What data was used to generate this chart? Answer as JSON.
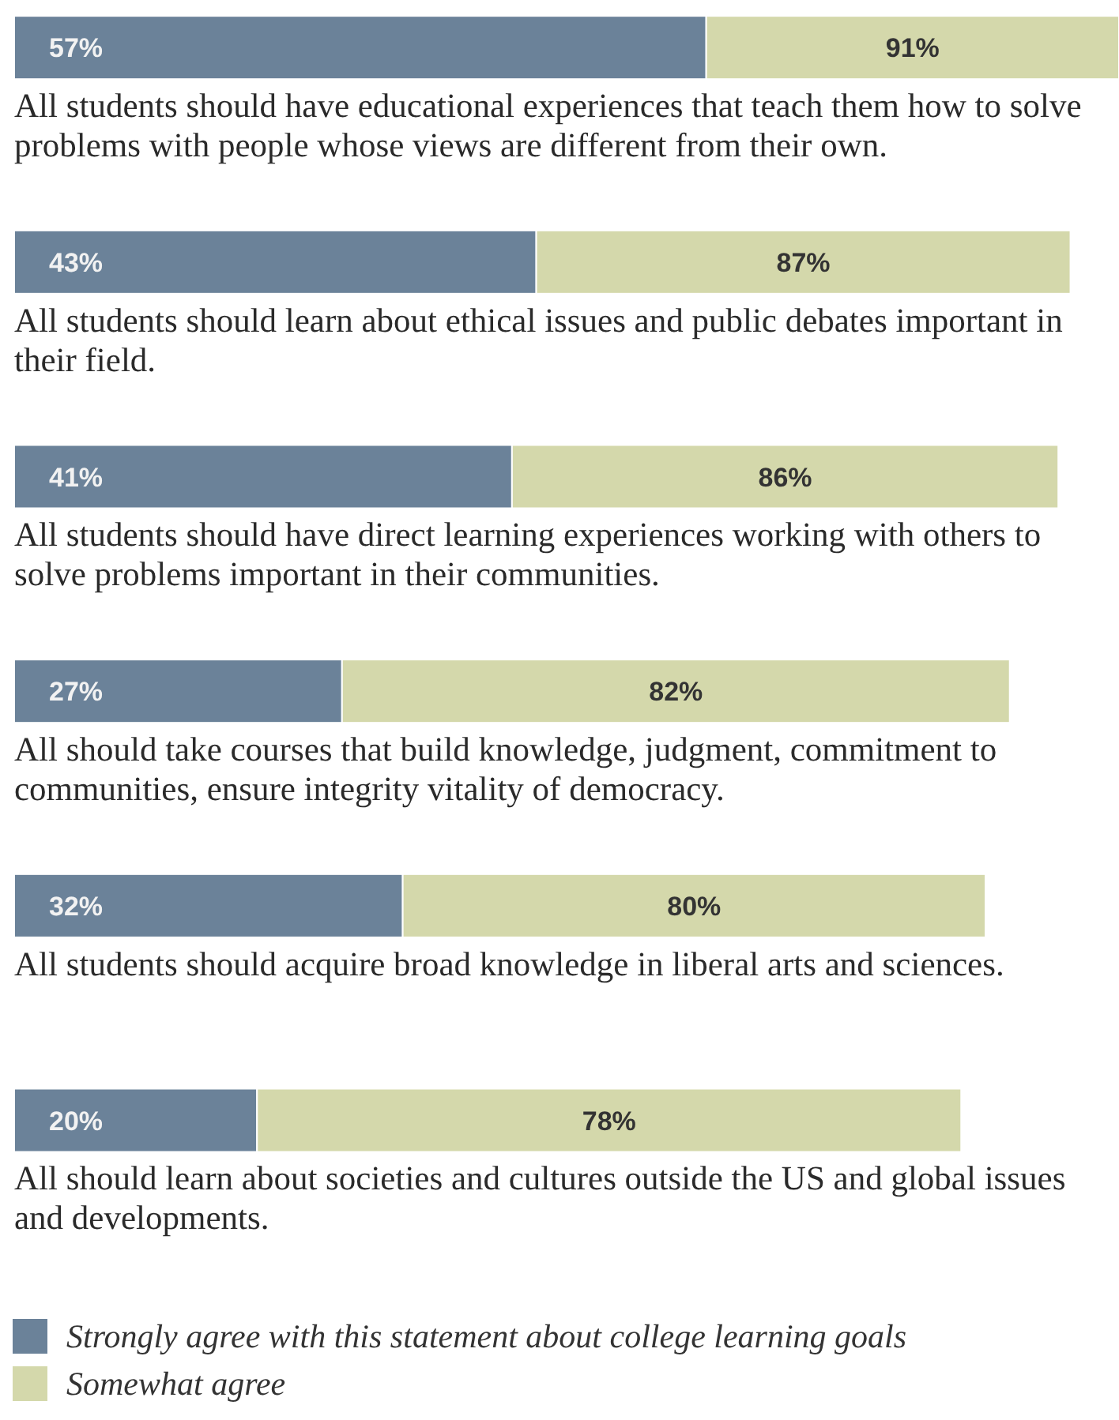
{
  "chart_data": {
    "type": "bar",
    "orientation": "horizontal",
    "stacked": true,
    "legend": "bottom left",
    "categories": [
      "All students should have educational experiences that teach them how to solve problems with people whose views are different from their own.",
      "All students should learn about ethical issues and public debates important in their field.",
      "All students should have direct learning experiences working with others to solve problems important in their communities.",
      "All should take courses that build knowledge, judgment, commitment to communities, ensure integrity vitality of democracy.",
      "All students should acquire broad knowledge in liberal arts and sciences.",
      "All should learn about societies and cultures outside the US and global issues and developments."
    ],
    "series": [
      {
        "name": "Strongly agree with this statement about college learning goals",
        "color": "#6b8299",
        "values": [
          57,
          43,
          41,
          27,
          32,
          20
        ],
        "value_labels": [
          "57%",
          "43%",
          "41%",
          "27%",
          "32%",
          "20%"
        ]
      },
      {
        "name": "Somewhat agree",
        "color": "#d4d8ab",
        "values": [
          34,
          44,
          45,
          55,
          48,
          58
        ]
      }
    ],
    "totals": [
      "91%",
      "87%",
      "86%",
      "82%",
      "80%",
      "78%"
    ]
  }
}
